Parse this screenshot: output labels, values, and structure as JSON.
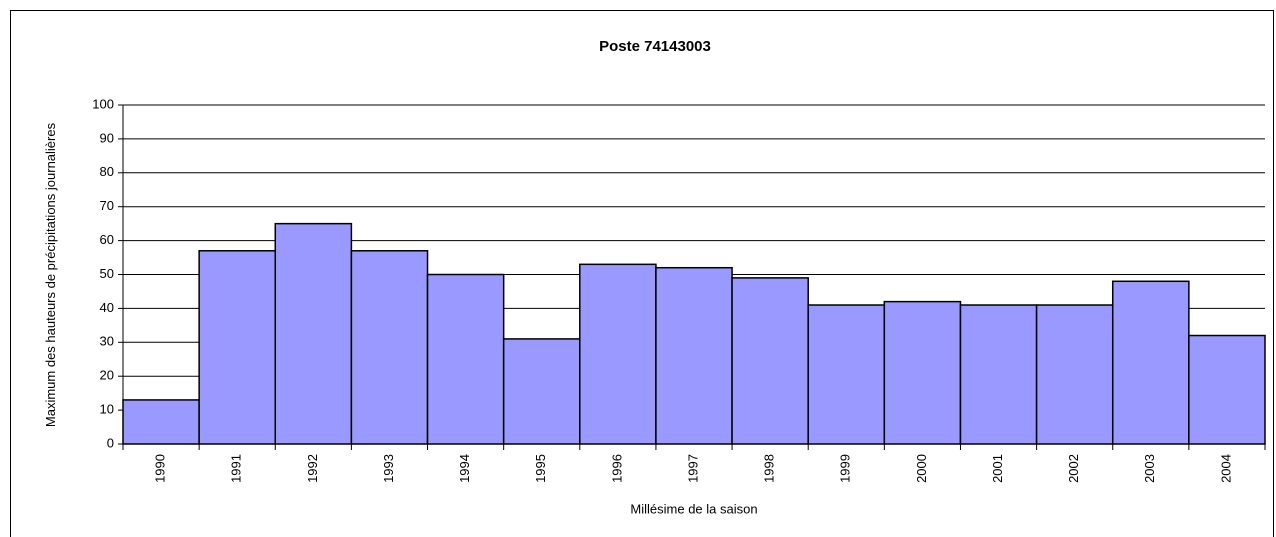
{
  "chart_data": {
    "type": "bar",
    "title": "Poste 74143003",
    "x_label": "Millésime de la saison",
    "y_label": "Maximum des hauteurs de précipitations journalières",
    "categories": [
      "1990",
      "1991",
      "1992",
      "1993",
      "1994",
      "1995",
      "1996",
      "1997",
      "1998",
      "1999",
      "2000",
      "2001",
      "2002",
      "2003",
      "2004"
    ],
    "values": [
      13,
      57,
      65,
      57,
      50,
      31,
      53,
      52,
      49,
      41,
      42,
      41,
      41,
      48,
      32
    ],
    "color": "#9999ff",
    "ylim": [
      0,
      100
    ],
    "yticks": [
      0,
      10,
      20,
      30,
      40,
      50,
      60,
      70,
      80,
      90,
      100
    ],
    "grid": true
  }
}
